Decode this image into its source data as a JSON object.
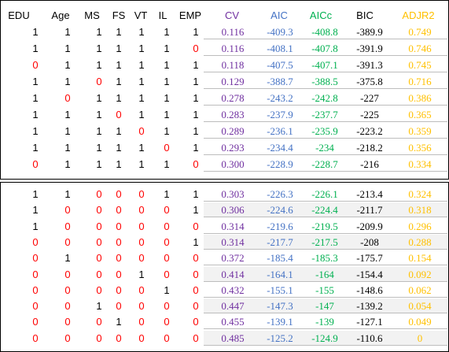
{
  "colors": {
    "cv": "#7030a0",
    "aic": "#4472c4",
    "aicc": "#00b050",
    "bic": "#000000",
    "adjr2": "#ffc000",
    "binary_one": "#000000",
    "binary_zero": "#ff0000"
  },
  "headers": [
    "EDU",
    "Age",
    "MS",
    "FS",
    "VT",
    "IL",
    "EMP",
    "CV",
    "AIC",
    "AICc",
    "BIC",
    "ADJR2"
  ],
  "top_rows": [
    {
      "bits": [
        "1",
        "1",
        "1",
        "1",
        "1",
        "1",
        "1"
      ],
      "cv": "0.116",
      "aic": "-409.3",
      "aicc": "-408.8",
      "bic": "-389.9",
      "adjr2": "0.749"
    },
    {
      "bits": [
        "1",
        "1",
        "1",
        "1",
        "1",
        "1",
        "0"
      ],
      "cv": "0.116",
      "aic": "-408.1",
      "aicc": "-407.8",
      "bic": "-391.9",
      "adjr2": "0.746"
    },
    {
      "bits": [
        "0",
        "1",
        "1",
        "1",
        "1",
        "1",
        "1"
      ],
      "cv": "0.118",
      "aic": "-407.5",
      "aicc": "-407.1",
      "bic": "-391.3",
      "adjr2": "0.745"
    },
    {
      "bits": [
        "1",
        "1",
        "0",
        "1",
        "1",
        "1",
        "1"
      ],
      "cv": "0.129",
      "aic": "-388.7",
      "aicc": "-388.5",
      "bic": "-375.8",
      "adjr2": "0.716"
    },
    {
      "bits": [
        "1",
        "0",
        "1",
        "1",
        "1",
        "1",
        "1"
      ],
      "cv": "0.278",
      "aic": "-243.2",
      "aicc": "-242.8",
      "bic": "-227",
      "adjr2": "0.386"
    },
    {
      "bits": [
        "1",
        "1",
        "1",
        "0",
        "1",
        "1",
        "1"
      ],
      "cv": "0.283",
      "aic": "-237.9",
      "aicc": "-237.7",
      "bic": "-225",
      "adjr2": "0.365"
    },
    {
      "bits": [
        "1",
        "1",
        "1",
        "1",
        "0",
        "1",
        "1"
      ],
      "cv": "0.289",
      "aic": "-236.1",
      "aicc": "-235.9",
      "bic": "-223.2",
      "adjr2": "0.359"
    },
    {
      "bits": [
        "1",
        "1",
        "1",
        "1",
        "1",
        "0",
        "1"
      ],
      "cv": "0.293",
      "aic": "-234.4",
      "aicc": "-234",
      "bic": "-218.2",
      "adjr2": "0.356"
    },
    {
      "bits": [
        "0",
        "1",
        "1",
        "1",
        "1",
        "1",
        "0"
      ],
      "cv": "0.300",
      "aic": "-228.9",
      "aicc": "-228.7",
      "bic": "-216",
      "adjr2": "0.334"
    }
  ],
  "bottom_rows": [
    {
      "bits": [
        "1",
        "1",
        "0",
        "0",
        "0",
        "1",
        "1"
      ],
      "cv": "0.303",
      "aic": "-226.3",
      "aicc": "-226.1",
      "bic": "-213.4",
      "adjr2": "0.324"
    },
    {
      "bits": [
        "1",
        "0",
        "0",
        "0",
        "0",
        "0",
        "1"
      ],
      "cv": "0.306",
      "aic": "-224.6",
      "aicc": "-224.4",
      "bic": "-211.7",
      "adjr2": "0.318"
    },
    {
      "bits": [
        "1",
        "0",
        "0",
        "0",
        "0",
        "0",
        "0"
      ],
      "cv": "0.314",
      "aic": "-219.6",
      "aicc": "-219.5",
      "bic": "-209.9",
      "adjr2": "0.296"
    },
    {
      "bits": [
        "0",
        "0",
        "0",
        "0",
        "0",
        "0",
        "1"
      ],
      "cv": "0.314",
      "aic": "-217.7",
      "aicc": "-217.5",
      "bic": "-208",
      "adjr2": "0.288"
    },
    {
      "bits": [
        "0",
        "1",
        "0",
        "0",
        "0",
        "0",
        "0"
      ],
      "cv": "0.372",
      "aic": "-185.4",
      "aicc": "-185.3",
      "bic": "-175.7",
      "adjr2": "0.154"
    },
    {
      "bits": [
        "0",
        "0",
        "0",
        "0",
        "1",
        "0",
        "0"
      ],
      "cv": "0.414",
      "aic": "-164.1",
      "aicc": "-164",
      "bic": "-154.4",
      "adjr2": "0.092"
    },
    {
      "bits": [
        "0",
        "0",
        "0",
        "0",
        "0",
        "1",
        "0"
      ],
      "cv": "0.432",
      "aic": "-155.1",
      "aicc": "-155",
      "bic": "-148.6",
      "adjr2": "0.062"
    },
    {
      "bits": [
        "0",
        "0",
        "1",
        "0",
        "0",
        "0",
        "0"
      ],
      "cv": "0.447",
      "aic": "-147.3",
      "aicc": "-147",
      "bic": "-139.2",
      "adjr2": "0.054"
    },
    {
      "bits": [
        "0",
        "0",
        "0",
        "1",
        "0",
        "0",
        "0"
      ],
      "cv": "0.455",
      "aic": "-139.1",
      "aicc": "-139",
      "bic": "-127.1",
      "adjr2": "0.049"
    },
    {
      "bits": [
        "0",
        "0",
        "0",
        "0",
        "0",
        "0",
        "0"
      ],
      "cv": "0.485",
      "aic": "-125.2",
      "aicc": "-124.9",
      "bic": "-110.6",
      "adjr2": "0"
    }
  ]
}
